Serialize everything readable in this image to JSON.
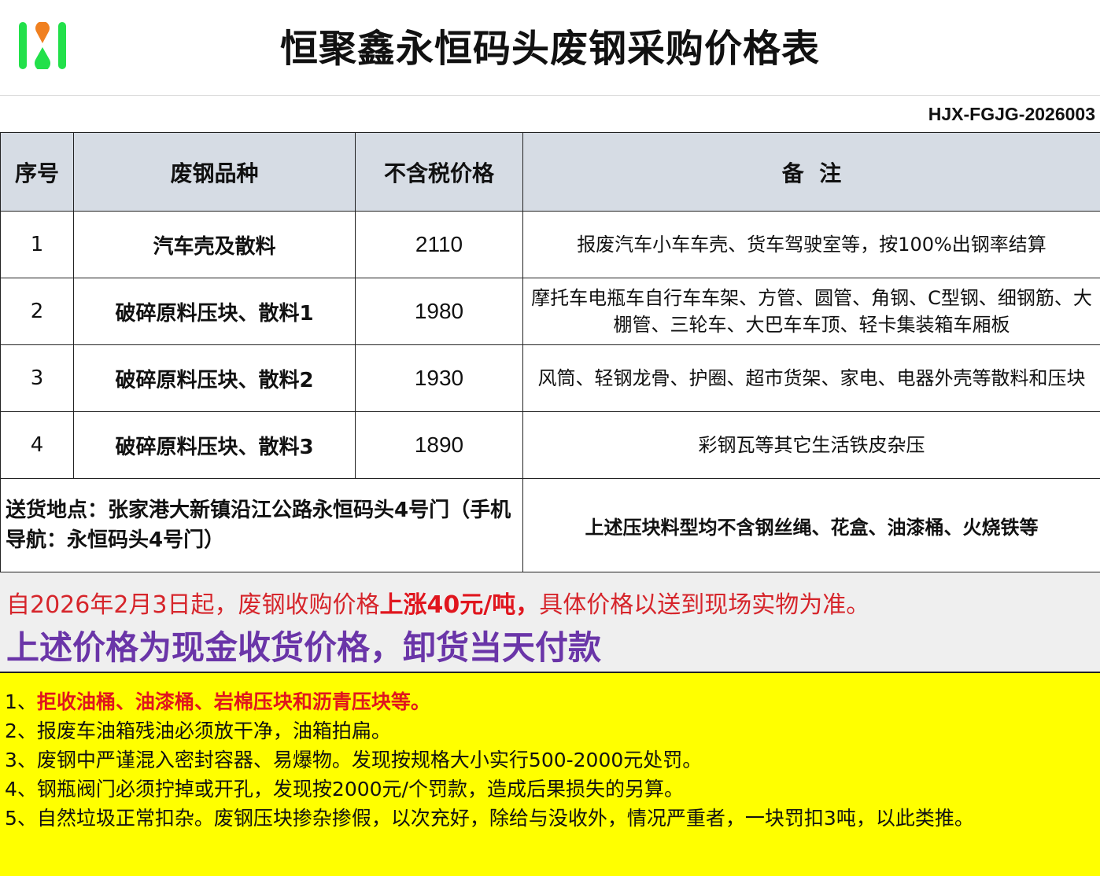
{
  "header": {
    "title": "恒聚鑫永恒码头废钢采购价格表",
    "code": "HJX-FGJG-2026003",
    "logo_colors": {
      "bars": "#22e04a",
      "drop_top": "#f08020"
    }
  },
  "table": {
    "columns": [
      "序号",
      "废钢品种",
      "不含税价格",
      "备  注"
    ],
    "rows": [
      {
        "no": "1",
        "name": "汽车壳及散料",
        "price": "2110",
        "remark": "报废汽车小车车壳、货车驾驶室等，按100%出钢率结算"
      },
      {
        "no": "2",
        "name": "破碎原料压块、散料1",
        "price": "1980",
        "remark": "摩托车电瓶车自行车车架、方管、圆管、角钢、C型钢、细钢筋、大棚管、三轮车、大巴车车顶、轻卡集装箱车厢板"
      },
      {
        "no": "3",
        "name": "破碎原料压块、散料2",
        "price": "1930",
        "remark": "风筒、轻钢龙骨、护圈、超市货架、家电、电器外壳等散料和压块"
      },
      {
        "no": "4",
        "name": "破碎原料压块、散料3",
        "price": "1890",
        "remark": "彩钢瓦等其它生活铁皮杂压"
      }
    ],
    "address": "送货地点：张家港大新镇沿江公路永恒码头4号门（手机导航：永恒码头4号门）",
    "address_note": "上述压块料型均不含钢丝绳、花盒、油漆桶、火烧铁等"
  },
  "notice": {
    "line1_pre": "自2026年2月3日起，废钢收购价格",
    "line1_bold": "上涨40元/吨，",
    "line1_post": "具体价格以送到现场实物为准。",
    "line2": "上述价格为现金收货价格，卸货当天付款"
  },
  "rules": {
    "r1_prefix": "1、",
    "r1": "拒收油桶、油漆桶、岩棉压块和沥青压块等。",
    "items": [
      "2、报废车油箱残油必须放干净，油箱拍扁。",
      "3、废钢中严谨混入密封容器、易爆物。发现按规格大小实行500-2000元处罚。",
      "4、钢瓶阀门必须拧掉或开孔，发现按2000元/个罚款，造成后果损失的另算。",
      "5、自然垃圾正常扣杂。废钢压块掺杂掺假，以次充好，除给与没收外，情况严重者，一块罚扣3吨，以此类推。"
    ]
  }
}
